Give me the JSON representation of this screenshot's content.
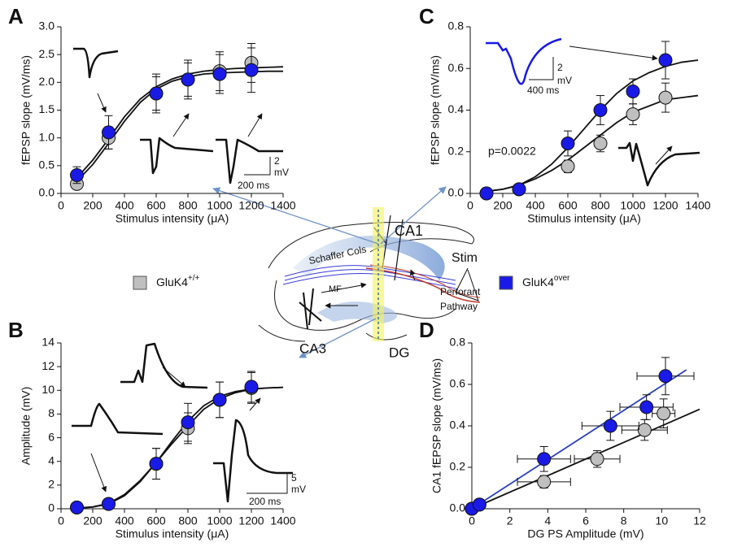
{
  "chart_data": [
    {
      "type": "scatter",
      "panel": "A",
      "x_label": "Stimulus intensity (μA)",
      "y_label": "fEPSP slope (mV/ms)",
      "x": [
        100,
        300,
        600,
        800,
        1000,
        1200
      ],
      "series": [
        {
          "color": "#bfbfbf",
          "values": [
            0.17,
            1.0,
            1.8,
            2.05,
            2.2,
            2.35
          ],
          "errors": [
            0.08,
            0.2,
            0.3,
            0.3,
            0.35,
            0.35
          ]
        },
        {
          "color": "#1a1ae6",
          "values": [
            0.33,
            1.1,
            1.8,
            2.05,
            2.15,
            2.22
          ],
          "errors": [
            0.15,
            0.3,
            0.35,
            0.35,
            0.35,
            0.4
          ]
        }
      ],
      "fit_lines": [
        {
          "color": "#111111",
          "x": [
            100,
            200,
            300,
            400,
            500,
            600,
            700,
            800,
            900,
            1000,
            1100,
            1200,
            1300,
            1400
          ],
          "values": [
            0.28,
            0.6,
            0.98,
            1.38,
            1.7,
            1.92,
            2.06,
            2.15,
            2.2,
            2.23,
            2.25,
            2.26,
            2.27,
            2.28
          ]
        },
        {
          "color": "#111111",
          "x": [
            100,
            200,
            300,
            400,
            500,
            600,
            700,
            800,
            900,
            1000,
            1100,
            1200,
            1300,
            1400
          ],
          "values": [
            0.22,
            0.52,
            0.9,
            1.3,
            1.64,
            1.88,
            2.02,
            2.1,
            2.15,
            2.17,
            2.18,
            2.19,
            2.2,
            2.2
          ]
        }
      ],
      "xlim": [
        0,
        1400
      ],
      "xticks": [
        0,
        200,
        400,
        600,
        800,
        1000,
        1200,
        1400
      ],
      "ylim": [
        0,
        3
      ],
      "yticks": [
        {
          "value": 0,
          "label": "0.0"
        },
        0.5,
        {
          "value": 1,
          "label": "1.0"
        },
        1.5,
        {
          "value": 2,
          "label": "2.0"
        },
        2.5,
        {
          "value": 3,
          "label": "3.0"
        }
      ],
      "scale_bar": [
        "2",
        "mV",
        "200 ms"
      ]
    },
    {
      "type": "scatter",
      "panel": "B",
      "x_label": "Stimulus intensity (μA)",
      "y_label": "Amplitude  (mV)",
      "x": [
        100,
        300,
        600,
        800,
        1000,
        1200
      ],
      "series": [
        {
          "color": "#bfbfbf",
          "values": [
            0.1,
            0.4,
            3.8,
            6.8,
            9.2,
            10.2
          ],
          "errors": [
            0,
            0,
            1.3,
            1.3,
            1.5,
            1.3
          ]
        },
        {
          "color": "#1a1ae6",
          "values": [
            0.1,
            0.4,
            3.8,
            7.3,
            9.2,
            10.3
          ],
          "errors": [
            0,
            0,
            1.3,
            1.6,
            1.5,
            1.3
          ]
        }
      ],
      "fit_lines": [
        {
          "color": "#111111",
          "x": [
            100,
            200,
            300,
            400,
            500,
            600,
            700,
            800,
            900,
            1000,
            1100,
            1200,
            1300,
            1400
          ],
          "values": [
            0.05,
            0.15,
            0.4,
            1.1,
            2.3,
            3.9,
            5.7,
            7.4,
            8.7,
            9.5,
            9.9,
            10.1,
            10.2,
            10.25
          ]
        },
        {
          "color": "#111111",
          "x": [
            100,
            200,
            300,
            400,
            500,
            600,
            700,
            800,
            900,
            1000,
            1100,
            1200,
            1300,
            1400
          ],
          "values": [
            0.05,
            0.15,
            0.45,
            1.2,
            2.4,
            3.9,
            5.5,
            7.0,
            8.4,
            9.3,
            9.8,
            10.1,
            10.2,
            10.25
          ]
        }
      ],
      "xlim": [
        0,
        1400
      ],
      "xticks": [
        0,
        200,
        400,
        600,
        800,
        1000,
        1200,
        1400
      ],
      "ylim": [
        0,
        14
      ],
      "yticks": [
        0,
        2,
        4,
        6,
        8,
        10,
        12,
        14
      ],
      "scale_bar": [
        "5",
        "mV",
        "200 ms"
      ]
    },
    {
      "type": "scatter",
      "panel": "C",
      "x_label": "Stimulus intensity (μA)",
      "y_label": "fEPSP slope (mV/ms)",
      "x": [
        100,
        300,
        600,
        800,
        1000,
        1200
      ],
      "series": [
        {
          "color": "#bfbfbf",
          "values": [
            0,
            0.02,
            0.13,
            0.24,
            0.38,
            0.46
          ],
          "errors": [
            0,
            0.01,
            0.03,
            0.04,
            0.05,
            0.07
          ]
        },
        {
          "color": "#1a1ae6",
          "values": [
            0,
            0.02,
            0.24,
            0.4,
            0.49,
            0.64
          ],
          "errors": [
            0,
            0.01,
            0.06,
            0.07,
            0.06,
            0.09
          ]
        }
      ],
      "fit_lines": [
        {
          "color": "#111111",
          "x": [
            100,
            200,
            300,
            400,
            500,
            600,
            700,
            800,
            900,
            1000,
            1100,
            1200,
            1300,
            1400
          ],
          "values": [
            0.01,
            0.02,
            0.04,
            0.07,
            0.11,
            0.16,
            0.22,
            0.28,
            0.34,
            0.39,
            0.42,
            0.45,
            0.46,
            0.47
          ]
        },
        {
          "color": "#111111",
          "x": [
            100,
            200,
            300,
            400,
            500,
            600,
            700,
            800,
            900,
            1000,
            1100,
            1200,
            1300,
            1400
          ],
          "values": [
            0.01,
            0.02,
            0.04,
            0.08,
            0.14,
            0.22,
            0.31,
            0.4,
            0.48,
            0.54,
            0.58,
            0.61,
            0.63,
            0.64
          ]
        }
      ],
      "xlim": [
        0,
        1400
      ],
      "xticks": [
        0,
        200,
        400,
        600,
        800,
        1000,
        1200,
        1400
      ],
      "ylim": [
        0,
        0.8
      ],
      "yticks": [
        {
          "value": 0,
          "label": "0.0"
        },
        0.2,
        0.4,
        0.6,
        0.8
      ],
      "annotation": "p=0.0022",
      "scale_bar": [
        "2",
        "mV",
        "400 ms"
      ]
    },
    {
      "type": "scatter",
      "panel": "D",
      "x_label": "DG PS Amplitude (mV)",
      "y_label": "CA1 fEPSP slope (mV/ms)",
      "series": [
        {
          "color": "#bfbfbf",
          "x": [
            0,
            0.4,
            3.8,
            6.6,
            9.1,
            10.1
          ],
          "x_errors": [
            0,
            0,
            1.4,
            1.2,
            1.2,
            0.6
          ],
          "values": [
            0,
            0.02,
            0.13,
            0.24,
            0.38,
            0.46
          ],
          "errors": [
            0,
            0.01,
            0.03,
            0.04,
            0.05,
            0.07
          ]
        },
        {
          "color": "#1a1ae6",
          "x": [
            0,
            0.4,
            3.8,
            7.3,
            9.2,
            10.2
          ],
          "x_errors": [
            0,
            0,
            1.4,
            1.5,
            1.4,
            1.5
          ],
          "values": [
            0,
            0.02,
            0.24,
            0.4,
            0.49,
            0.64
          ],
          "errors": [
            0,
            0.01,
            0.06,
            0.07,
            0.06,
            0.09
          ]
        }
      ],
      "fit_lines": [
        {
          "color": "#111111",
          "x": [
            0,
            12
          ],
          "values": [
            0,
            0.48
          ]
        },
        {
          "color": "#2a3fc1",
          "x": [
            0,
            11.3
          ],
          "values": [
            0,
            0.67
          ]
        }
      ],
      "xlim": [
        0,
        12
      ],
      "xticks": [
        0,
        2,
        4,
        6,
        8,
        10,
        12
      ],
      "ylim": [
        0,
        0.8
      ],
      "yticks": [
        {
          "value": 0,
          "label": "0.0"
        },
        0.2,
        0.4,
        0.6,
        0.8
      ]
    }
  ],
  "legend": [
    {
      "label": "GluK4",
      "sup": "+/+",
      "color": "#bfbfbf"
    },
    {
      "label": "GluK4",
      "sup": "over",
      "color": "#1a1ae6"
    }
  ],
  "diagram": {
    "labels": [
      "Schaffer Cols",
      "CA1",
      "Stim",
      "MF",
      "Perforant",
      "Pathway",
      "CA3",
      "DG"
    ]
  }
}
